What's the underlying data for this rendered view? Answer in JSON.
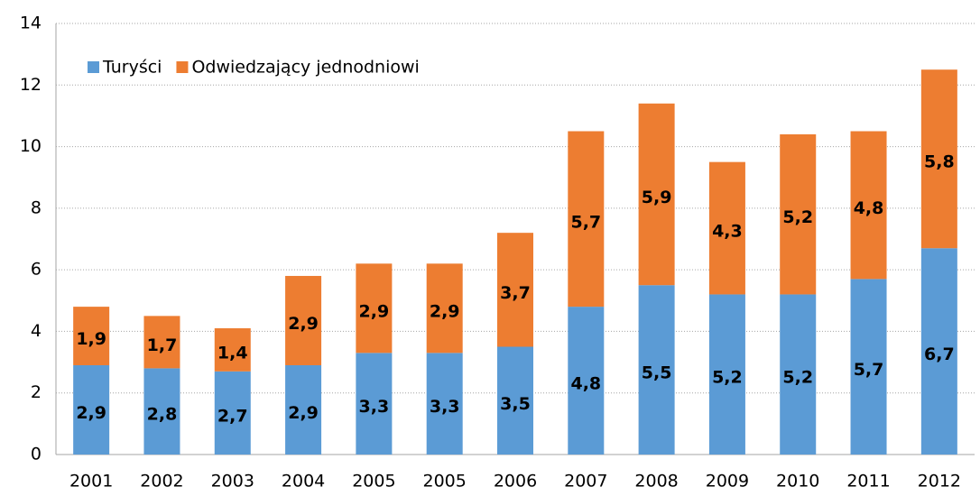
{
  "chart_data": {
    "type": "stacked_bar",
    "categories": [
      "2001",
      "2002",
      "2003",
      "2004",
      "2005",
      "2005",
      "2006",
      "2007",
      "2008",
      "2009",
      "2010",
      "2011",
      "2012"
    ],
    "series": [
      {
        "name": "Turyści",
        "color": "#5b9bd5",
        "values": [
          2.9,
          2.8,
          2.7,
          2.9,
          3.3,
          3.3,
          3.5,
          4.8,
          5.5,
          5.2,
          5.2,
          5.7,
          6.7
        ],
        "value_labels": [
          "2,9",
          "2,8",
          "2,7",
          "2,9",
          "3,3",
          "3,3",
          "3,5",
          "4,8",
          "5,5",
          "5,2",
          "5,2",
          "5,7",
          "6,7"
        ]
      },
      {
        "name": "Odwiedzający jednodniowi",
        "color": "#ed7d31",
        "values": [
          1.9,
          1.7,
          1.4,
          2.9,
          2.9,
          2.9,
          3.7,
          5.7,
          5.9,
          4.3,
          5.2,
          4.8,
          5.8
        ],
        "value_labels": [
          "1,9",
          "1,7",
          "1,4",
          "2,9",
          "2,9",
          "2,9",
          "3,7",
          "5,7",
          "5,9",
          "4,3",
          "5,2",
          "4,8",
          "5,8"
        ]
      }
    ],
    "ylim": [
      0,
      14
    ],
    "yticks": [
      0,
      2,
      4,
      6,
      8,
      10,
      12,
      14
    ],
    "grid": true,
    "legend": "top-left"
  }
}
